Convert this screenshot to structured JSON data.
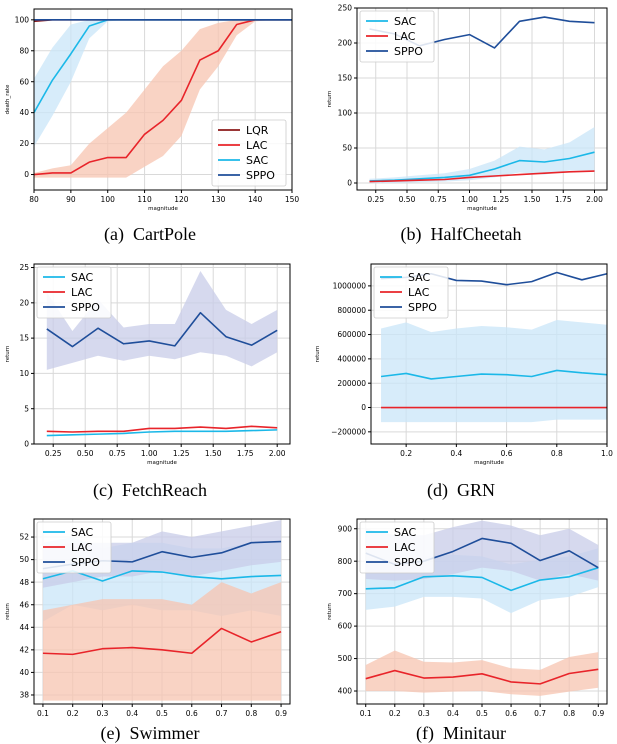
{
  "colors": {
    "LQR": "#8b1a1a",
    "LAC": "#e8242a",
    "SAC": "#1bb8e8",
    "SPPO": "#1f4e9a",
    "LAC_band": "#f7c4b0",
    "SAC_band": "#c9e6f8",
    "SPPO_band": "#c8cce8"
  },
  "chart_data": [
    {
      "type": "line",
      "caption_tag": "(a)",
      "caption": "CartPole",
      "xlabel": "magnitude",
      "ylabel": "death_rate",
      "xlim": [
        80,
        150
      ],
      "ylim": [
        -10,
        107
      ],
      "xticks": [
        80,
        90,
        100,
        110,
        120,
        130,
        140,
        150
      ],
      "yticks": [
        0,
        20,
        40,
        60,
        80,
        100
      ],
      "ytick_labels": [
        "0",
        "20",
        "40",
        "60",
        "80",
        "100"
      ],
      "grid": true,
      "legend": "bottom-right",
      "legend_order": [
        "LQR",
        "LAC",
        "SAC",
        "SPPO"
      ],
      "series": [
        {
          "name": "LQR",
          "color_key": "LQR",
          "x": [
            80,
            85,
            90,
            95,
            100,
            105,
            110,
            115,
            120,
            125,
            130,
            135,
            140,
            145,
            150
          ],
          "y": [
            99,
            100,
            100,
            100,
            100,
            100,
            100,
            100,
            100,
            100,
            100,
            100,
            100,
            100,
            100
          ]
        },
        {
          "name": "LAC",
          "color_key": "LAC",
          "x": [
            80,
            85,
            90,
            95,
            100,
            105,
            110,
            115,
            120,
            125,
            130,
            135,
            140,
            145,
            150
          ],
          "y": [
            0,
            1,
            1,
            8,
            11,
            11,
            26,
            35,
            48,
            74,
            80,
            97,
            100,
            100,
            100
          ],
          "band_lo": [
            -2,
            -2,
            -2,
            -2,
            -2,
            -2,
            5,
            12,
            25,
            55,
            70,
            90,
            99,
            100,
            100
          ],
          "band_hi": [
            1,
            4,
            6,
            20,
            30,
            40,
            55,
            70,
            80,
            94,
            98,
            100,
            100,
            100,
            100
          ]
        },
        {
          "name": "SAC",
          "color_key": "SAC",
          "x": [
            80,
            85,
            90,
            95,
            100,
            105,
            110,
            115,
            120,
            125,
            130,
            135,
            140,
            145,
            150
          ],
          "y": [
            40,
            61,
            78,
            96,
            100,
            100,
            100,
            100,
            100,
            100,
            100,
            100,
            100,
            100,
            100
          ],
          "band_lo": [
            18,
            38,
            60,
            88,
            99,
            100,
            100,
            100,
            100,
            100,
            100,
            100,
            100,
            100,
            100
          ],
          "band_hi": [
            62,
            82,
            97,
            100,
            100,
            100,
            100,
            100,
            100,
            100,
            100,
            100,
            100,
            100,
            100
          ]
        },
        {
          "name": "SPPO",
          "color_key": "SPPO",
          "x": [
            80,
            85,
            90,
            95,
            100,
            105,
            110,
            115,
            120,
            125,
            130,
            135,
            140,
            145,
            150
          ],
          "y": [
            100,
            100,
            100,
            100,
            100,
            100,
            100,
            100,
            100,
            100,
            100,
            100,
            100,
            100,
            100
          ]
        }
      ]
    },
    {
      "type": "line",
      "caption_tag": "(b)",
      "caption": "HalfCheetah",
      "xlabel": "magnitude",
      "ylabel": "return",
      "xlim": [
        0.1,
        2.1
      ],
      "ylim": [
        -10,
        250
      ],
      "xticks": [
        0.25,
        0.5,
        0.75,
        1.0,
        1.25,
        1.5,
        1.75,
        2.0
      ],
      "xtick_labels": [
        "0.25",
        "0.50",
        "0.75",
        "1.00",
        "1.25",
        "1.50",
        "1.75",
        "2.00"
      ],
      "yticks": [
        0,
        50,
        100,
        150,
        200,
        250
      ],
      "ytick_labels": [
        "0",
        "50",
        "100",
        "150",
        "200",
        "250"
      ],
      "grid": true,
      "legend": "top-left",
      "legend_order": [
        "SAC",
        "LAC",
        "SPPO"
      ],
      "series": [
        {
          "name": "SAC",
          "color_key": "SAC",
          "x": [
            0.2,
            0.4,
            0.6,
            0.8,
            1.0,
            1.2,
            1.4,
            1.6,
            1.8,
            2.0
          ],
          "y": [
            3,
            4,
            6,
            8,
            11,
            20,
            32,
            30,
            35,
            44
          ],
          "band_lo": [
            0,
            0,
            1,
            2,
            4,
            8,
            15,
            12,
            18,
            18
          ],
          "band_hi": [
            6,
            8,
            11,
            14,
            20,
            32,
            52,
            48,
            58,
            80
          ]
        },
        {
          "name": "LAC",
          "color_key": "LAC",
          "x": [
            0.2,
            0.4,
            0.6,
            0.8,
            1.0,
            1.2,
            1.4,
            1.6,
            1.8,
            2.0
          ],
          "y": [
            2,
            3,
            4,
            5,
            8,
            10,
            12,
            14,
            16,
            17
          ]
        },
        {
          "name": "SPPO",
          "color_key": "SPPO",
          "x": [
            0.2,
            0.4,
            0.6,
            0.8,
            1.0,
            1.2,
            1.4,
            1.6,
            1.8,
            2.0
          ],
          "y": [
            220,
            213,
            196,
            205,
            212,
            193,
            231,
            237,
            231,
            229
          ]
        }
      ]
    },
    {
      "type": "line",
      "caption_tag": "(c)",
      "caption": "FetchReach",
      "xlabel": "magnitude",
      "ylabel": "return",
      "xlim": [
        0.1,
        2.1
      ],
      "ylim": [
        0,
        25.5
      ],
      "xticks": [
        0.25,
        0.5,
        0.75,
        1.0,
        1.25,
        1.5,
        1.75,
        2.0
      ],
      "xtick_labels": [
        "0.25",
        "0.50",
        "0.75",
        "1.00",
        "1.25",
        "1.50",
        "1.75",
        "2.00"
      ],
      "yticks": [
        0,
        5,
        10,
        15,
        20,
        25
      ],
      "ytick_labels": [
        "0",
        "5",
        "10",
        "15",
        "20",
        "25"
      ],
      "grid": true,
      "legend": "top-left",
      "legend_order": [
        "SAC",
        "LAC",
        "SPPO"
      ],
      "series": [
        {
          "name": "SAC",
          "color_key": "SAC",
          "x": [
            0.2,
            0.4,
            0.6,
            0.8,
            1.0,
            1.2,
            1.4,
            1.6,
            1.8,
            2.0
          ],
          "y": [
            1.2,
            1.3,
            1.4,
            1.5,
            1.7,
            1.8,
            1.8,
            1.8,
            1.9,
            2.0
          ]
        },
        {
          "name": "LAC",
          "color_key": "LAC",
          "x": [
            0.2,
            0.4,
            0.6,
            0.8,
            1.0,
            1.2,
            1.4,
            1.6,
            1.8,
            2.0
          ],
          "y": [
            1.8,
            1.7,
            1.8,
            1.8,
            2.2,
            2.2,
            2.4,
            2.2,
            2.5,
            2.3
          ]
        },
        {
          "name": "SPPO",
          "color_key": "SPPO",
          "x": [
            0.2,
            0.4,
            0.6,
            0.8,
            1.0,
            1.2,
            1.4,
            1.6,
            1.8,
            2.0
          ],
          "y": [
            16.3,
            13.8,
            16.4,
            14.2,
            14.6,
            13.9,
            18.6,
            15.2,
            14.0,
            16.1
          ],
          "band_lo": [
            10.5,
            11.5,
            12.5,
            11.8,
            12.5,
            12.0,
            13.0,
            12.5,
            11.0,
            13.0
          ],
          "band_hi": [
            21.5,
            16.0,
            20.5,
            16.5,
            17.0,
            17.0,
            24.5,
            19.0,
            17.0,
            19.0
          ]
        }
      ]
    },
    {
      "type": "line",
      "caption_tag": "(d)",
      "caption": "GRN",
      "xlabel": "magnitude",
      "ylabel": "return",
      "xlim": [
        0.06,
        1.0
      ],
      "ylim": [
        -300000,
        1180000
      ],
      "xticks": [
        0.2,
        0.4,
        0.6,
        0.8,
        1.0
      ],
      "xtick_labels": [
        "0.2",
        "0.4",
        "0.6",
        "0.8",
        "1.0"
      ],
      "yticks": [
        -200000,
        0,
        200000,
        400000,
        600000,
        800000,
        1000000
      ],
      "ytick_labels": [
        "−200000",
        "0",
        "200000",
        "400000",
        "600000",
        "800000",
        "1000000"
      ],
      "grid": true,
      "legend": "top-left",
      "legend_order": [
        "SAC",
        "LAC",
        "SPPO"
      ],
      "series": [
        {
          "name": "SAC",
          "color_key": "SAC",
          "x": [
            0.1,
            0.2,
            0.3,
            0.4,
            0.5,
            0.6,
            0.7,
            0.8,
            0.9,
            1.0
          ],
          "y": [
            255000,
            280000,
            235000,
            255000,
            275000,
            270000,
            255000,
            305000,
            285000,
            270000
          ],
          "band_lo": [
            -120000,
            -120000,
            -120000,
            -120000,
            -120000,
            -120000,
            -120000,
            -100000,
            -100000,
            -100000
          ],
          "band_hi": [
            650000,
            700000,
            620000,
            650000,
            670000,
            660000,
            640000,
            720000,
            700000,
            680000
          ]
        },
        {
          "name": "LAC",
          "color_key": "LAC",
          "x": [
            0.1,
            0.2,
            0.3,
            0.4,
            0.5,
            0.6,
            0.7,
            0.8,
            0.9,
            1.0
          ],
          "y": [
            0,
            0,
            0,
            0,
            0,
            0,
            0,
            0,
            0,
            0
          ]
        },
        {
          "name": "SPPO",
          "color_key": "SPPO",
          "x": [
            0.1,
            0.2,
            0.3,
            0.4,
            0.5,
            0.6,
            0.7,
            0.8,
            0.9,
            1.0
          ],
          "y": [
            1060000,
            1070000,
            1100000,
            1045000,
            1040000,
            1010000,
            1035000,
            1110000,
            1050000,
            1100000
          ]
        }
      ]
    },
    {
      "type": "line",
      "caption_tag": "(e)",
      "caption": "Swimmer",
      "xlabel": "",
      "ylabel": "return",
      "xlim": [
        0.07,
        0.93
      ],
      "ylim": [
        37.2,
        53.6
      ],
      "xticks": [
        0.1,
        0.2,
        0.3,
        0.4,
        0.5,
        0.6,
        0.7,
        0.8,
        0.9
      ],
      "xtick_labels": [
        "0.1",
        "0.2",
        "0.3",
        "0.4",
        "0.5",
        "0.6",
        "0.7",
        "0.8",
        "0.9"
      ],
      "yticks": [
        38,
        40,
        42,
        44,
        46,
        48,
        50,
        52
      ],
      "ytick_labels": [
        "38",
        "40",
        "42",
        "44",
        "46",
        "48",
        "50",
        "52"
      ],
      "grid": true,
      "legend": "top-left",
      "legend_order": [
        "SAC",
        "LAC",
        "SPPO"
      ],
      "series": [
        {
          "name": "SAC",
          "color_key": "SAC",
          "x": [
            0.1,
            0.2,
            0.3,
            0.4,
            0.5,
            0.6,
            0.7,
            0.8,
            0.9
          ],
          "y": [
            48.3,
            49.0,
            48.1,
            49.0,
            48.9,
            48.5,
            48.3,
            48.5,
            48.6
          ],
          "band_lo": [
            44.5,
            46.0,
            45.5,
            46.0,
            45.5,
            45.5,
            45.0,
            45.5,
            45.0
          ],
          "band_hi": [
            51.5,
            52.0,
            51.0,
            51.5,
            51.5,
            51.0,
            51.0,
            51.5,
            51.5
          ]
        },
        {
          "name": "LAC",
          "color_key": "LAC",
          "x": [
            0.1,
            0.2,
            0.3,
            0.4,
            0.5,
            0.6,
            0.7,
            0.8,
            0.9
          ],
          "y": [
            41.7,
            41.6,
            42.1,
            42.2,
            42.0,
            41.7,
            43.9,
            42.7,
            43.6
          ],
          "band_lo": [
            37.5,
            37.5,
            37.5,
            37.5,
            37.5,
            37.5,
            37.5,
            37.5,
            37.5
          ],
          "band_hi": [
            45.5,
            46.0,
            46.5,
            46.5,
            46.5,
            46.0,
            48.0,
            47.0,
            48.0
          ]
        },
        {
          "name": "SPPO",
          "color_key": "SPPO",
          "x": [
            0.1,
            0.2,
            0.3,
            0.4,
            0.5,
            0.6,
            0.7,
            0.8,
            0.9
          ],
          "y": [
            49.2,
            49.6,
            49.9,
            49.8,
            50.7,
            50.2,
            50.6,
            51.5,
            51.6
          ],
          "band_lo": [
            47.5,
            48.0,
            48.5,
            48.5,
            49.0,
            48.5,
            49.0,
            49.5,
            49.8
          ],
          "band_hi": [
            51.0,
            51.5,
            51.5,
            51.5,
            52.5,
            52.0,
            52.5,
            53.0,
            53.5
          ]
        }
      ]
    },
    {
      "type": "line",
      "caption_tag": "(f)",
      "caption": "Minitaur",
      "xlabel": "",
      "ylabel": "return",
      "xlim": [
        0.07,
        0.93
      ],
      "ylim": [
        360,
        930
      ],
      "xticks": [
        0.1,
        0.2,
        0.3,
        0.4,
        0.5,
        0.6,
        0.7,
        0.8,
        0.9
      ],
      "xtick_labels": [
        "0.1",
        "0.2",
        "0.3",
        "0.4",
        "0.5",
        "0.6",
        "0.7",
        "0.8",
        "0.9"
      ],
      "yticks": [
        400,
        500,
        600,
        700,
        800,
        900
      ],
      "ytick_labels": [
        "400",
        "500",
        "600",
        "700",
        "800",
        "900"
      ],
      "grid": true,
      "legend": "top-left",
      "legend_order": [
        "SAC",
        "LAC",
        "SPPO"
      ],
      "series": [
        {
          "name": "SAC",
          "color_key": "SAC",
          "x": [
            0.1,
            0.2,
            0.3,
            0.4,
            0.5,
            0.6,
            0.7,
            0.8,
            0.9
          ],
          "y": [
            715,
            718,
            752,
            755,
            750,
            710,
            742,
            752,
            780
          ],
          "band_lo": [
            650,
            660,
            690,
            690,
            685,
            640,
            680,
            690,
            720
          ],
          "band_hi": [
            790,
            790,
            815,
            820,
            815,
            790,
            805,
            815,
            840
          ]
        },
        {
          "name": "LAC",
          "color_key": "LAC",
          "x": [
            0.1,
            0.2,
            0.3,
            0.4,
            0.5,
            0.6,
            0.7,
            0.8,
            0.9
          ],
          "y": [
            438,
            463,
            440,
            443,
            453,
            428,
            422,
            454,
            467
          ],
          "band_lo": [
            400,
            400,
            395,
            398,
            400,
            390,
            385,
            398,
            410
          ],
          "band_hi": [
            480,
            525,
            490,
            488,
            495,
            470,
            465,
            505,
            520
          ]
        },
        {
          "name": "SPPO",
          "color_key": "SPPO",
          "x": [
            0.1,
            0.2,
            0.3,
            0.4,
            0.5,
            0.6,
            0.7,
            0.8,
            0.9
          ],
          "y": [
            825,
            790,
            800,
            830,
            870,
            855,
            802,
            832,
            780
          ],
          "band_lo": [
            745,
            740,
            745,
            760,
            780,
            770,
            740,
            760,
            740
          ],
          "band_hi": [
            900,
            880,
            880,
            905,
            925,
            910,
            880,
            900,
            850
          ]
        }
      ]
    }
  ]
}
